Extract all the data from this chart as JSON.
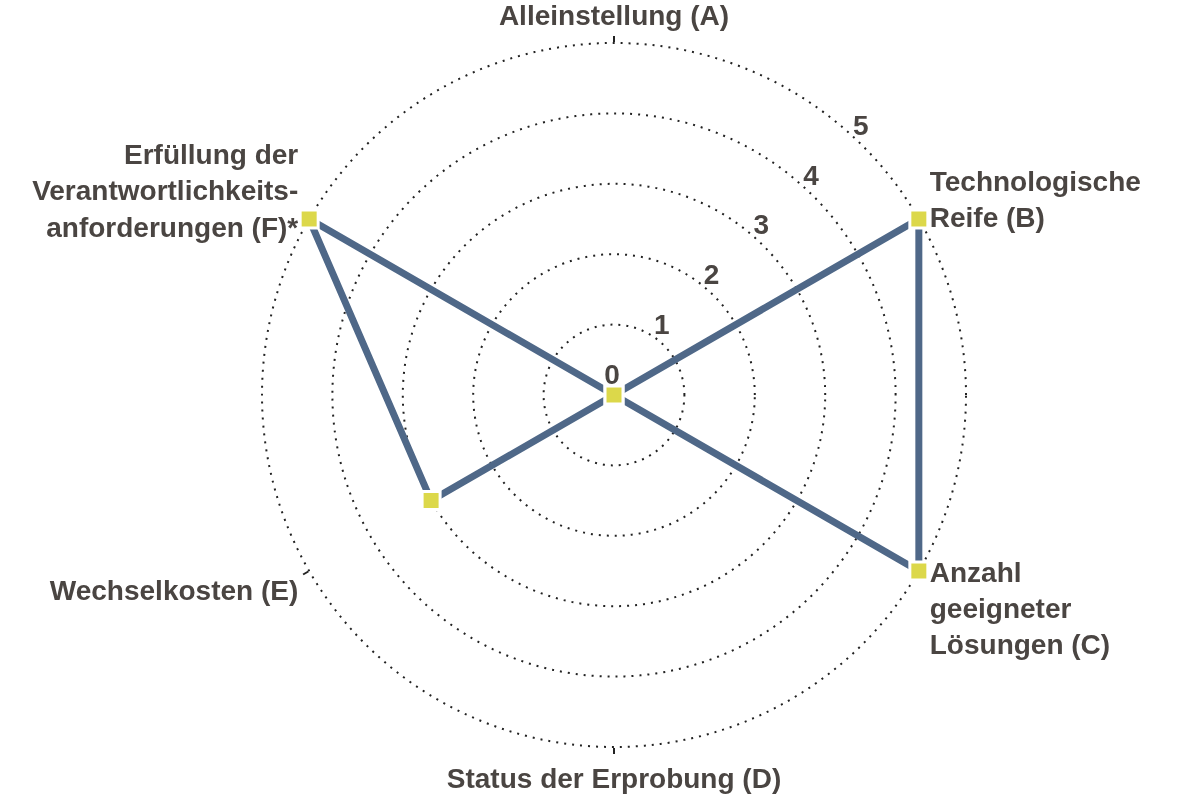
{
  "chart_data": {
    "type": "radar",
    "categories": [
      "Alleinstellung (A)",
      "Technologische\nReife (B)",
      "Anzahl\ngeeigneter\nLösungen (C)",
      "Status der Erprobung (D)",
      "Wechselkosten (E)",
      "Erfüllung der\nVerantwortlichkeits-\nanforderungen (F)*"
    ],
    "series": [
      {
        "color": "#4f6888",
        "colors": [
          "#dcd84a",
          "#dcd84a",
          "#dcd84a",
          "#dcd84a",
          "#dcd84a",
          "#dcd84a"
        ],
        "values": [
          0,
          5,
          5,
          0,
          3,
          5
        ]
      }
    ],
    "ylim": [
      0,
      5
    ],
    "yticks": [
      0,
      1,
      2,
      3,
      4,
      5
    ],
    "grid": "y",
    "marker": "square",
    "line_style": "solid"
  }
}
